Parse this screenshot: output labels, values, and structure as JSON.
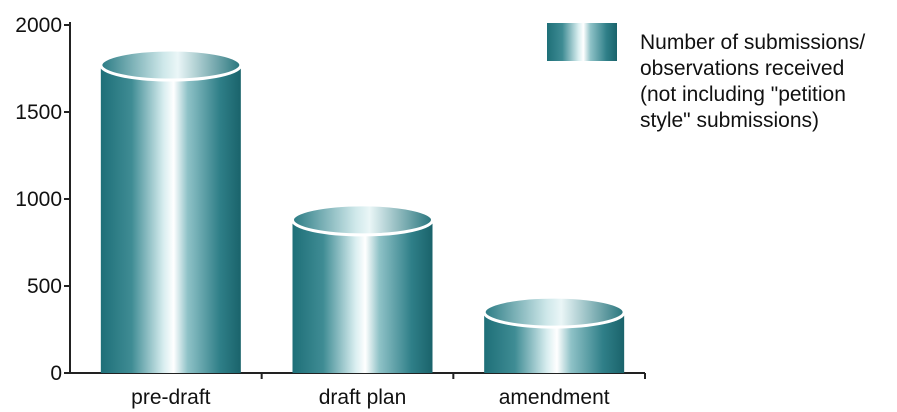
{
  "chart_data": {
    "type": "bar",
    "categories": [
      "pre-draft",
      "draft plan",
      "amendment"
    ],
    "series": [
      {
        "name": "Number of submissions/ observations received (not including \"petition style\" submissions)",
        "values": [
          1770,
          880,
          350
        ]
      }
    ],
    "ylim": [
      0,
      2000
    ],
    "yticks": [
      "0",
      "500",
      "1000",
      "1500",
      "2000"
    ],
    "grid": false,
    "legend_position": "top-right",
    "legend_lines": [
      "Number of submissions/",
      "observations received",
      "(not including \"petition",
      "style\" submissions)"
    ],
    "colors": {
      "bar_dark": "#1e6f78",
      "bar_mid": "#4f9aa2",
      "bar_light": "#f4fbfb",
      "axis": "#222222"
    }
  }
}
